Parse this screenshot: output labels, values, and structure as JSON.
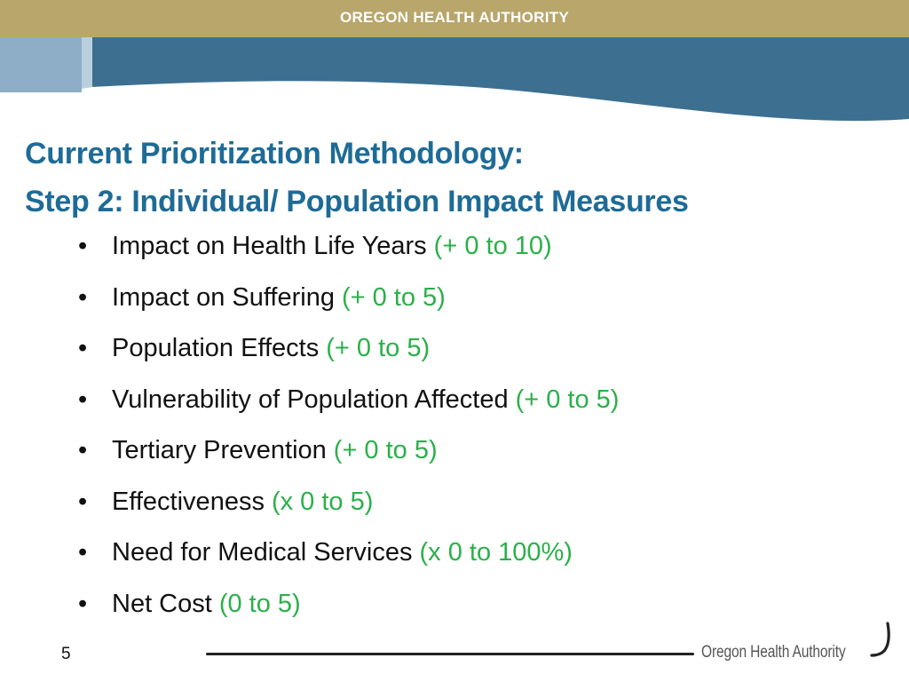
{
  "header": {
    "organization": "OREGON HEALTH AUTHORITY",
    "colors": {
      "top_bar": "#b8a66a",
      "banner_dark": "#3d6f91",
      "banner_light": "#8daec6",
      "title": "#1e6b96",
      "range_text": "#2bb04a"
    }
  },
  "slide": {
    "title_line1": "Current Prioritization Methodology:",
    "title_line2": "Step 2: Individual/ Population Impact Measures",
    "bullet_symbol": "•",
    "bullets": [
      {
        "label": "Impact on Health Life Years",
        "range": "(+ 0 to 10)"
      },
      {
        "label": "Impact on Suffering",
        "range": "(+ 0 to 5)"
      },
      {
        "label": "Population Effects",
        "range": "(+ 0 to 5)"
      },
      {
        "label": "Vulnerability of Population Affected",
        "range": "(+ 0 to 5)"
      },
      {
        "label": "Tertiary Prevention",
        "range": "(+ 0 to 5)"
      },
      {
        "label": "Effectiveness",
        "range": "(x 0 to 5)"
      },
      {
        "label": "Need for Medical Services",
        "range": "(x 0 to 100%)"
      },
      {
        "label": "Net Cost",
        "range": "(0 to 5)"
      }
    ]
  },
  "footer": {
    "page_number": "5",
    "logo_text": "Oregon Health Authority",
    "logo_icon": "oha-swoosh-logo-icon"
  }
}
